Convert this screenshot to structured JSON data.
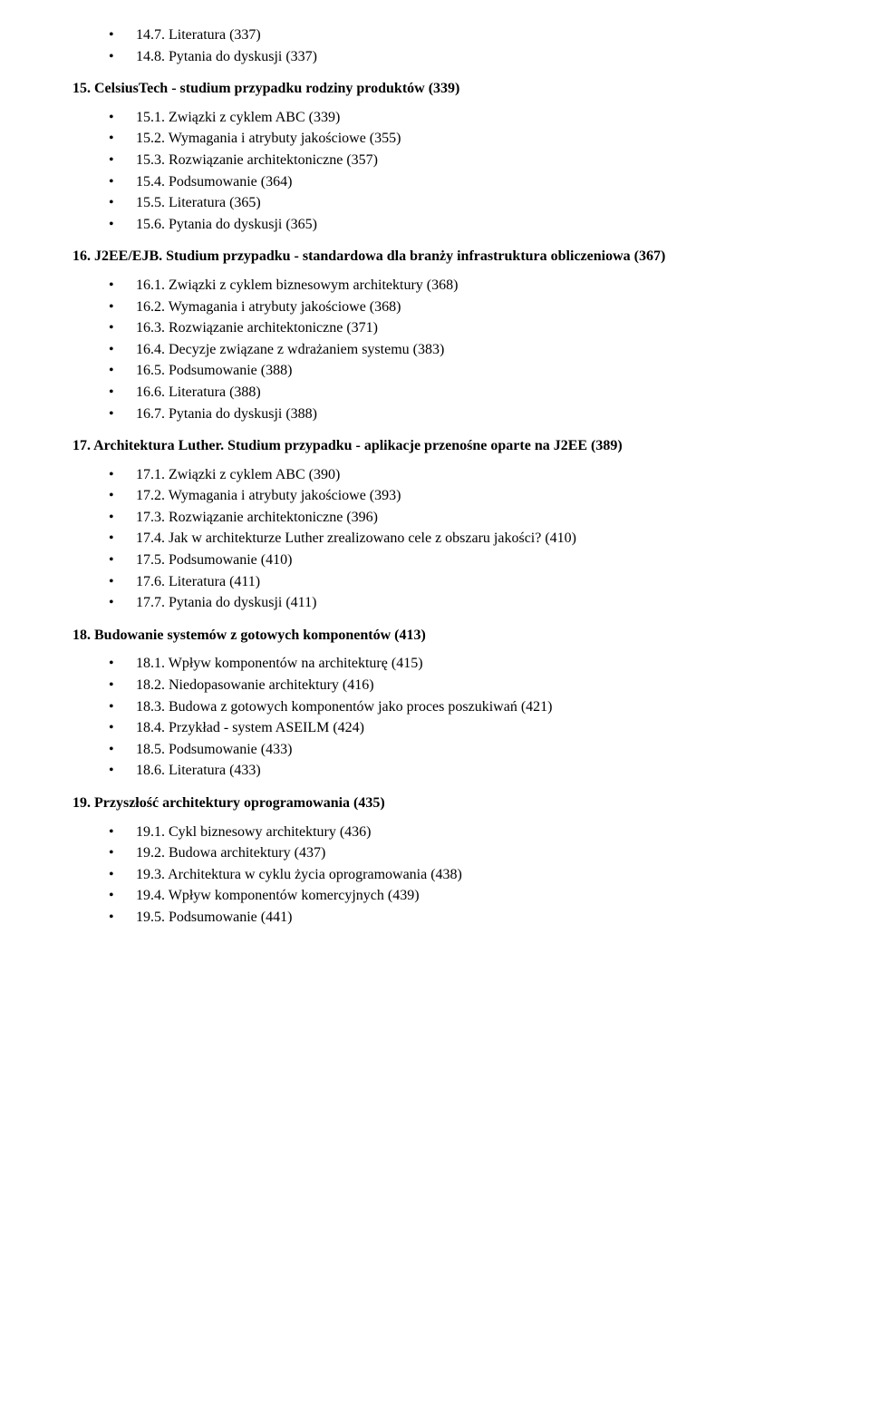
{
  "sections": [
    {
      "heading": null,
      "items": [
        "14.7. Literatura (337)",
        "14.8. Pytania do dyskusji (337)"
      ]
    },
    {
      "heading": "15. CelsiusTech - studium przypadku rodziny produktów (339)",
      "items": [
        "15.1. Związki z cyklem ABC (339)",
        "15.2. Wymagania i atrybuty jakościowe (355)",
        "15.3. Rozwiązanie architektoniczne (357)",
        "15.4. Podsumowanie (364)",
        "15.5. Literatura (365)",
        "15.6. Pytania do dyskusji (365)"
      ]
    },
    {
      "heading": "16. J2EE/EJB. Studium przypadku - standardowa dla branży infrastruktura obliczeniowa (367)",
      "items": [
        "16.1. Związki z cyklem biznesowym architektury (368)",
        "16.2. Wymagania i atrybuty jakościowe (368)",
        "16.3. Rozwiązanie architektoniczne (371)",
        "16.4. Decyzje związane z wdrażaniem systemu (383)",
        "16.5. Podsumowanie (388)",
        "16.6. Literatura (388)",
        "16.7. Pytania do dyskusji (388)"
      ]
    },
    {
      "heading": "17. Architektura Luther. Studium przypadku - aplikacje przenośne oparte na J2EE (389)",
      "items": [
        "17.1. Związki z cyklem ABC (390)",
        "17.2. Wymagania i atrybuty jakościowe (393)",
        "17.3. Rozwiązanie architektoniczne (396)",
        "17.4. Jak w architekturze Luther zrealizowano cele z obszaru jakości? (410)",
        "17.5. Podsumowanie (410)",
        "17.6. Literatura (411)",
        "17.7. Pytania do dyskusji (411)"
      ]
    },
    {
      "heading": "18. Budowanie systemów z gotowych komponentów (413)",
      "items": [
        "18.1. Wpływ komponentów na architekturę (415)",
        "18.2. Niedopasowanie architektury (416)",
        "18.3. Budowa z gotowych komponentów jako proces poszukiwań (421)",
        "18.4. Przykład - system ASEILM (424)",
        "18.5. Podsumowanie (433)",
        "18.6. Literatura (433)"
      ]
    },
    {
      "heading": "19. Przyszłość architektury oprogramowania (435)",
      "items": [
        "19.1. Cykl biznesowy architektury (436)",
        "19.2. Budowa architektury (437)",
        "19.3. Architektura w cyklu życia oprogramowania (438)",
        "19.4. Wpływ komponentów komercyjnych (439)",
        "19.5. Podsumowanie (441)"
      ]
    }
  ]
}
